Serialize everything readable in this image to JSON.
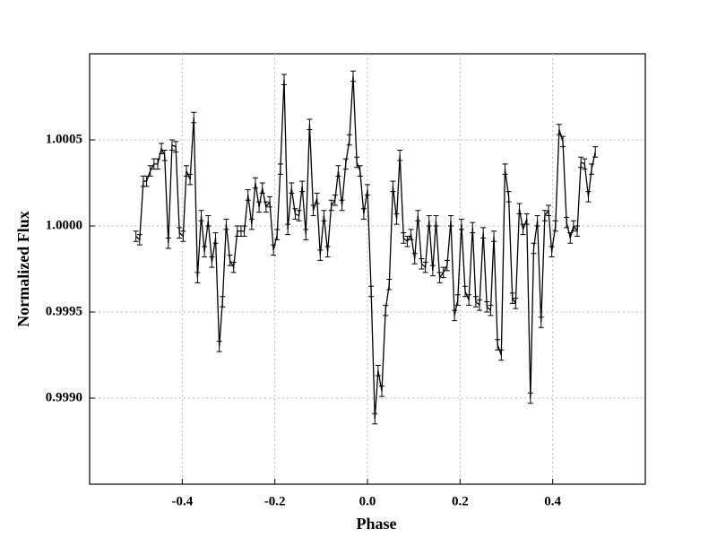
{
  "chart_data": {
    "type": "errorbar_line",
    "xlabel": "Phase",
    "ylabel": "Normalized Flux",
    "xlim": [
      -0.6,
      0.6
    ],
    "ylim": [
      0.9985,
      1.001
    ],
    "xticks": [
      -0.4,
      -0.2,
      {
        "value": 0,
        "label": "0.0"
      },
      0.2,
      0.4
    ],
    "yticks": [
      {
        "value": 0.999,
        "label": "0.9990"
      },
      0.9995,
      {
        "value": 1,
        "label": "1.0000"
      },
      1.0005
    ],
    "grid": true,
    "yerr": 3e-05,
    "x": [
      -0.5,
      -0.492,
      -0.484,
      -0.477,
      -0.469,
      -0.461,
      -0.453,
      -0.445,
      -0.438,
      -0.43,
      -0.422,
      -0.414,
      -0.406,
      -0.398,
      -0.391,
      -0.383,
      -0.375,
      -0.367,
      -0.359,
      -0.352,
      -0.344,
      -0.336,
      -0.328,
      -0.32,
      -0.313,
      -0.305,
      -0.297,
      -0.289,
      -0.281,
      -0.273,
      -0.266,
      -0.258,
      -0.25,
      -0.242,
      -0.234,
      -0.227,
      -0.219,
      -0.211,
      -0.203,
      -0.195,
      -0.188,
      -0.18,
      -0.172,
      -0.164,
      -0.156,
      -0.148,
      -0.141,
      -0.133,
      -0.125,
      -0.117,
      -0.109,
      -0.102,
      -0.094,
      -0.086,
      -0.078,
      -0.07,
      -0.063,
      -0.055,
      -0.047,
      -0.039,
      -0.031,
      -0.023,
      -0.016,
      -0.008,
      0.0,
      0.008,
      0.016,
      0.023,
      0.031,
      0.039,
      0.047,
      0.055,
      0.063,
      0.07,
      0.078,
      0.086,
      0.094,
      0.102,
      0.109,
      0.117,
      0.125,
      0.133,
      0.141,
      0.148,
      0.156,
      0.164,
      0.172,
      0.18,
      0.188,
      0.195,
      0.203,
      0.211,
      0.219,
      0.227,
      0.234,
      0.242,
      0.25,
      0.258,
      0.266,
      0.273,
      0.281,
      0.289,
      0.297,
      0.305,
      0.313,
      0.32,
      0.328,
      0.336,
      0.344,
      0.352,
      0.359,
      0.367,
      0.375,
      0.383,
      0.391,
      0.398,
      0.406,
      0.414,
      0.422,
      0.43,
      0.438,
      0.445,
      0.453,
      0.461,
      0.469,
      0.477,
      0.484,
      0.492
    ],
    "series": [
      {
        "color": "#000000",
        "values": [
          0.99994,
          0.99992,
          1.00026,
          1.00026,
          1.00032,
          1.00036,
          1.00036,
          1.00045,
          1.00041,
          0.9999,
          1.00047,
          1.00046,
          0.99996,
          0.99994,
          1.00032,
          1.00027,
          1.00063,
          0.9997,
          1.00006,
          0.99985,
          1.00003,
          0.99979,
          0.99993,
          0.9993,
          0.99956,
          1.00001,
          0.9998,
          0.99976,
          0.99997,
          0.99997,
          0.99997,
          1.00018,
          1.00001,
          1.00025,
          1.00011,
          1.00022,
          1.00011,
          1.00014,
          0.99986,
          0.99995,
          1.00033,
          1.00085,
          0.99998,
          1.00022,
          1.00007,
          1.00006,
          1.00023,
          0.99995,
          1.00059,
          1.00009,
          1.00016,
          0.99983,
          1.00006,
          0.99985,
          1.00012,
          1.00015,
          1.00032,
          1.00012,
          1.00036,
          1.0005,
          1.00087,
          1.00037,
          1.00032,
          1.00007,
          1.00021,
          0.99962,
          0.99888,
          0.99916,
          0.99904,
          0.99951,
          0.99966,
          1.00023,
          1.00004,
          1.00041,
          0.99993,
          0.99991,
          0.99995,
          0.99981,
          1.00006,
          0.99978,
          0.99976,
          1.00003,
          0.99974,
          1.00003,
          0.9997,
          0.99973,
          0.99977,
          1.00003,
          0.99948,
          0.99957,
          1.00001,
          0.99962,
          0.99957,
          0.99999,
          0.99956,
          0.99954,
          0.99996,
          0.99953,
          0.99951,
          0.99994,
          0.99931,
          0.99925,
          1.00033,
          1.00017,
          0.99958,
          0.99955,
          1.0001,
          0.99998,
          1.00004,
          0.999,
          0.99987,
          1.00003,
          0.99944,
          1.00006,
          1.00009,
          0.99985,
          1.0,
          1.00056,
          1.00049,
          1.00002,
          0.99993,
          1.0,
          0.99997,
          1.00037,
          1.00036,
          1.00017,
          1.00033,
          1.00043
        ]
      }
    ]
  }
}
